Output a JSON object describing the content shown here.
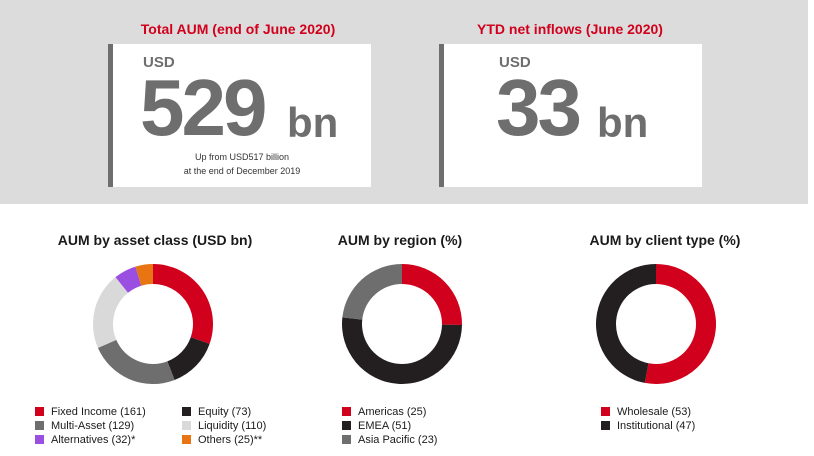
{
  "kpis": {
    "aum": {
      "title": "Total AUM (end of June 2020)",
      "currency": "USD",
      "value": "529",
      "unit": "bn",
      "note_line1": "Up from USD517 billion",
      "note_line2": "at the end of December 2019"
    },
    "inflows": {
      "title": "YTD net inflows (June 2020)",
      "currency": "USD",
      "value": "33",
      "unit": "bn"
    }
  },
  "colors": {
    "accent_red": "#d1001c",
    "panel_bg": "#dcdcdc",
    "number_gray": "#6e6e6e"
  },
  "chart_data": [
    {
      "type": "pie",
      "style": "donut",
      "title": "AUM by asset class (USD bn)",
      "labels": [
        "Fixed Income (161)",
        "Equity (73)",
        "Multi-Asset (129)",
        "Liquidity (110)",
        "Alternatives (32)*",
        "Others (25)**"
      ],
      "categories": [
        "Fixed Income",
        "Equity",
        "Multi-Asset",
        "Liquidity",
        "Alternatives",
        "Others"
      ],
      "values": [
        161,
        73,
        129,
        110,
        32,
        25
      ],
      "colors": [
        "#d1001c",
        "#231f20",
        "#6e6e6e",
        "#d9d9d9",
        "#9b4fe0",
        "#e87511"
      ]
    },
    {
      "type": "pie",
      "style": "donut",
      "title": "AUM by region (%)",
      "labels": [
        "Americas (25)",
        "EMEA (51)",
        "Asia Pacific (23)"
      ],
      "categories": [
        "Americas",
        "EMEA",
        "Asia Pacific"
      ],
      "values": [
        25,
        51,
        23
      ],
      "colors": [
        "#d1001c",
        "#231f20",
        "#6e6e6e"
      ]
    },
    {
      "type": "pie",
      "style": "donut",
      "title": "AUM by client type (%)",
      "labels": [
        "Wholesale (53)",
        "Institutional (47)"
      ],
      "categories": [
        "Wholesale",
        "Institutional"
      ],
      "values": [
        53,
        47
      ],
      "colors": [
        "#d1001c",
        "#231f20"
      ]
    }
  ]
}
